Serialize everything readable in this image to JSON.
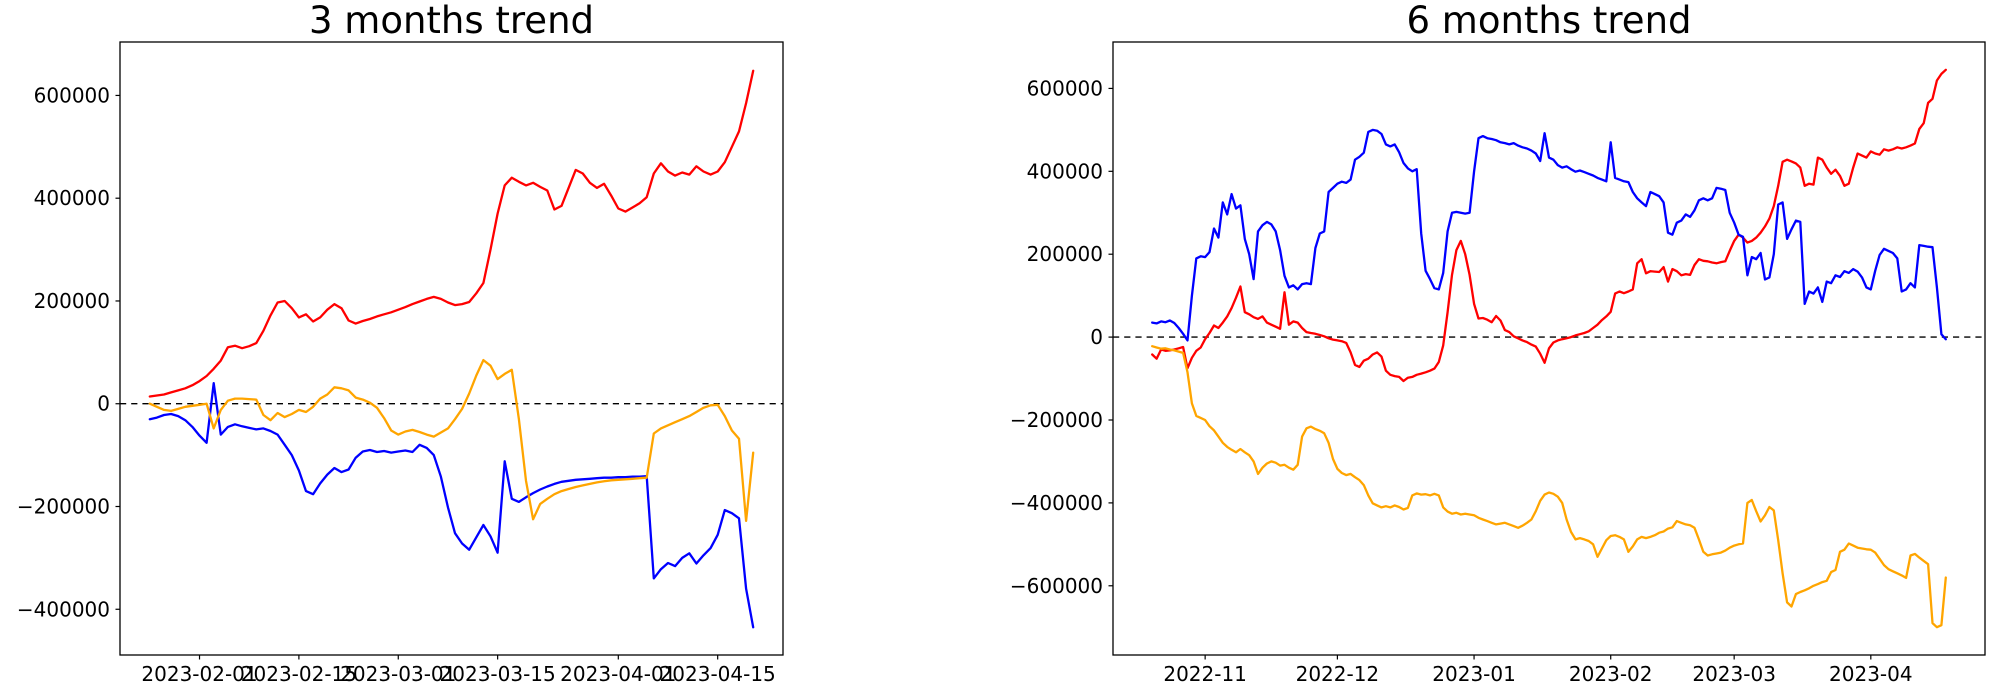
{
  "page": {
    "background": "#ffffff"
  },
  "chart_data": [
    {
      "type": "line",
      "title": "3 months trend",
      "x_start_date": "2023-01-25",
      "x_step": "1 day",
      "xlabel": "",
      "ylabel": "",
      "grid": false,
      "legend": null,
      "ylim": [
        -489000,
        704000
      ],
      "yticks": [
        600000,
        400000,
        200000,
        0,
        -200000,
        -400000
      ],
      "xticks": [
        {
          "day": 7,
          "label": "2023-02-01"
        },
        {
          "day": 21,
          "label": "2023-02-15"
        },
        {
          "day": 35,
          "label": "2023-03-01"
        },
        {
          "day": 49,
          "label": "2023-03-15"
        },
        {
          "day": 66,
          "label": "2023-04-01"
        },
        {
          "day": 80,
          "label": "2023-04-15"
        }
      ],
      "zero_line": {
        "style": "dashed",
        "color": "#000000"
      },
      "series": [
        {
          "name": "red-series",
          "color": "#ff0000",
          "values": [
            14000,
            16000,
            18000,
            22000,
            26000,
            30000,
            36000,
            44000,
            54000,
            68000,
            84000,
            110000,
            113000,
            108000,
            112000,
            118000,
            142000,
            172000,
            197000,
            200000,
            186000,
            168000,
            174000,
            160000,
            168000,
            183000,
            194000,
            186000,
            162000,
            156000,
            161000,
            165000,
            170000,
            174000,
            178000,
            183000,
            188000,
            194000,
            199000,
            204000,
            208000,
            204000,
            197000,
            192000,
            194000,
            198000,
            215000,
            235000,
            300000,
            370000,
            425000,
            440000,
            432000,
            425000,
            430000,
            422000,
            415000,
            378000,
            385000,
            420000,
            455000,
            448000,
            430000,
            420000,
            428000,
            405000,
            380000,
            374000,
            382000,
            390000,
            402000,
            448000,
            468000,
            452000,
            444000,
            450000,
            446000,
            462000,
            452000,
            446000,
            452000,
            470000,
            500000,
            530000,
            585000,
            648000
          ]
        },
        {
          "name": "blue-series",
          "color": "#0000ff",
          "values": [
            -30000,
            -27000,
            -22000,
            -20000,
            -24000,
            -32000,
            -45000,
            -62000,
            -76000,
            40000,
            -60000,
            -45000,
            -40000,
            -44000,
            -47000,
            -50000,
            -48000,
            -53000,
            -60000,
            -80000,
            -100000,
            -130000,
            -170000,
            -176000,
            -155000,
            -138000,
            -125000,
            -133000,
            -128000,
            -105000,
            -93000,
            -90000,
            -94000,
            -92000,
            -95000,
            -93000,
            -91000,
            -94000,
            -80000,
            -86000,
            -100000,
            -142000,
            -202000,
            -252000,
            -272000,
            -284000,
            -260000,
            -236000,
            -258000,
            -290000,
            -112000,
            -185000,
            -191000,
            -182000,
            -174000,
            -167000,
            -161000,
            -156000,
            -152000,
            -150000,
            -148000,
            -147000,
            -146000,
            -145000,
            -144000,
            -144000,
            -143000,
            -143000,
            -142000,
            -142000,
            -141000,
            -340000,
            -322000,
            -310000,
            -316000,
            -300000,
            -291000,
            -311000,
            -295000,
            -281000,
            -255000,
            -207000,
            -213000,
            -223000,
            -360000,
            -435000
          ]
        },
        {
          "name": "orange-series",
          "color": "#ffa500",
          "values": [
            0,
            -6000,
            -12000,
            -14000,
            -10000,
            -6000,
            -4000,
            -2000,
            0,
            -48000,
            -12000,
            6000,
            10000,
            10000,
            9000,
            8000,
            -22000,
            -32000,
            -18000,
            -26000,
            -20000,
            -12000,
            -16000,
            -6000,
            10000,
            18000,
            32000,
            30000,
            26000,
            12000,
            8000,
            2000,
            -8000,
            -28000,
            -52000,
            -60000,
            -54000,
            -51000,
            -55000,
            -60000,
            -64000,
            -56000,
            -48000,
            -30000,
            -10000,
            20000,
            55000,
            85000,
            74000,
            48000,
            58000,
            66000,
            -30000,
            -150000,
            -225000,
            -195000,
            -185000,
            -176000,
            -170000,
            -166000,
            -162000,
            -159000,
            -156000,
            -153000,
            -151000,
            -149000,
            -148000,
            -147000,
            -146000,
            -145000,
            -144000,
            -58000,
            -48000,
            -42000,
            -36000,
            -30000,
            -24000,
            -16000,
            -8000,
            -3000,
            -2000,
            -24000,
            -52000,
            -68000,
            -228000,
            -95000
          ]
        }
      ]
    },
    {
      "type": "line",
      "title": "6 months trend",
      "x_start_date": "2022-10-20",
      "x_step": "1 day",
      "xlabel": "",
      "ylabel": "",
      "grid": false,
      "legend": null,
      "ylim": [
        -767000,
        712000
      ],
      "yticks": [
        600000,
        400000,
        200000,
        0,
        -200000,
        -400000,
        -600000
      ],
      "xticks": [
        {
          "day": 12,
          "label": "2022-11"
        },
        {
          "day": 42,
          "label": "2022-12"
        },
        {
          "day": 73,
          "label": "2023-01"
        },
        {
          "day": 104,
          "label": "2023-02"
        },
        {
          "day": 132,
          "label": "2023-03"
        },
        {
          "day": 163,
          "label": "2023-04"
        }
      ],
      "zero_line": {
        "style": "dashed",
        "color": "#000000"
      },
      "series": [
        {
          "name": "red-series",
          "color": "#ff0000",
          "values": [
            -42000,
            -52000,
            -30000,
            -33000,
            -32000,
            -30000,
            -27000,
            -24000,
            -75000,
            -50000,
            -33000,
            -25000,
            -5000,
            10000,
            28000,
            22000,
            35000,
            50000,
            70000,
            95000,
            122000,
            60000,
            55000,
            48000,
            44000,
            50000,
            35000,
            30000,
            25000,
            20000,
            108000,
            30000,
            38000,
            35000,
            22000,
            12000,
            10000,
            8000,
            5000,
            2000,
            -3000,
            -6000,
            -8000,
            -10000,
            -14000,
            -37000,
            -67000,
            -72000,
            -57000,
            -52000,
            -42000,
            -37000,
            -47000,
            -81000,
            -91000,
            -94000,
            -96000,
            -106000,
            -98000,
            -96000,
            -91000,
            -88000,
            -85000,
            -81000,
            -76000,
            -60000,
            -20000,
            60000,
            150000,
            210000,
            232000,
            200000,
            150000,
            80000,
            45000,
            46000,
            42000,
            36000,
            51000,
            40000,
            17000,
            12000,
            2000,
            -3000,
            -8000,
            -12000,
            -18000,
            -23000,
            -40000,
            -62000,
            -27000,
            -13000,
            -8000,
            -5000,
            -3000,
            0,
            4000,
            7000,
            10000,
            14000,
            22000,
            30000,
            41000,
            50000,
            61000,
            105000,
            110000,
            106000,
            110000,
            115000,
            178000,
            188000,
            154000,
            159000,
            158000,
            157000,
            169000,
            134000,
            164000,
            159000,
            149000,
            152000,
            150000,
            174000,
            188000,
            184000,
            183000,
            180000,
            178000,
            181000,
            183000,
            208000,
            232000,
            247000,
            240000,
            228000,
            232000,
            240000,
            252000,
            267000,
            286000,
            316000,
            365000,
            423000,
            428000,
            424000,
            419000,
            409000,
            365000,
            370000,
            368000,
            433000,
            428000,
            409000,
            394000,
            404000,
            389000,
            365000,
            370000,
            409000,
            443000,
            438000,
            433000,
            448000,
            443000,
            440000,
            453000,
            450000,
            453000,
            458000,
            455000,
            458000,
            462000,
            467000,
            502000,
            516000,
            565000,
            575000,
            619000,
            635000,
            645000
          ]
        },
        {
          "name": "blue-series",
          "color": "#0000ff",
          "values": [
            35000,
            33000,
            38000,
            36000,
            40000,
            34000,
            22000,
            8000,
            -8000,
            100000,
            190000,
            195000,
            193000,
            205000,
            262000,
            240000,
            325000,
            296000,
            345000,
            310000,
            318000,
            237000,
            200000,
            140000,
            255000,
            270000,
            278000,
            272000,
            255000,
            210000,
            148000,
            120000,
            125000,
            115000,
            128000,
            130000,
            128000,
            215000,
            250000,
            255000,
            350000,
            360000,
            370000,
            375000,
            372000,
            380000,
            428000,
            435000,
            445000,
            495000,
            500000,
            498000,
            490000,
            465000,
            460000,
            465000,
            446000,
            420000,
            407000,
            400000,
            405000,
            250000,
            160000,
            140000,
            118000,
            115000,
            155000,
            255000,
            300000,
            302000,
            300000,
            298000,
            300000,
            400000,
            480000,
            485000,
            480000,
            478000,
            475000,
            470000,
            468000,
            465000,
            468000,
            462000,
            458000,
            455000,
            450000,
            443000,
            425000,
            492000,
            433000,
            428000,
            415000,
            409000,
            412000,
            405000,
            399000,
            402000,
            398000,
            394000,
            390000,
            384000,
            380000,
            376000,
            470000,
            384000,
            380000,
            376000,
            374000,
            350000,
            335000,
            325000,
            316000,
            350000,
            345000,
            340000,
            325000,
            252000,
            247000,
            276000,
            281000,
            296000,
            290000,
            306000,
            330000,
            335000,
            330000,
            335000,
            360000,
            358000,
            355000,
            300000,
            276000,
            247000,
            242000,
            149000,
            193000,
            188000,
            203000,
            139000,
            144000,
            200000,
            320000,
            325000,
            237000,
            260000,
            281000,
            278000,
            80000,
            110000,
            105000,
            120000,
            85000,
            134000,
            130000,
            149000,
            145000,
            159000,
            155000,
            164000,
            158000,
            144000,
            120000,
            115000,
            160000,
            198000,
            213000,
            208000,
            203000,
            190000,
            110000,
            115000,
            130000,
            120000,
            222000,
            220000,
            218000,
            217000,
            120000,
            7000,
            -5000
          ]
        },
        {
          "name": "orange-series",
          "color": "#ffa500",
          "values": [
            -22000,
            -25000,
            -28000,
            -27000,
            -30000,
            -32000,
            -35000,
            -38000,
            -85000,
            -160000,
            -190000,
            -195000,
            -200000,
            -215000,
            -225000,
            -240000,
            -255000,
            -265000,
            -272000,
            -278000,
            -270000,
            -278000,
            -285000,
            -300000,
            -330000,
            -315000,
            -305000,
            -300000,
            -303000,
            -310000,
            -308000,
            -315000,
            -320000,
            -308000,
            -240000,
            -220000,
            -216000,
            -222000,
            -226000,
            -232000,
            -255000,
            -294000,
            -318000,
            -328000,
            -333000,
            -330000,
            -338000,
            -345000,
            -357000,
            -382000,
            -401000,
            -406000,
            -411000,
            -408000,
            -411000,
            -406000,
            -410000,
            -416000,
            -412000,
            -382000,
            -377000,
            -380000,
            -379000,
            -382000,
            -378000,
            -382000,
            -411000,
            -421000,
            -426000,
            -424000,
            -428000,
            -426000,
            -428000,
            -430000,
            -436000,
            -440000,
            -444000,
            -448000,
            -452000,
            -450000,
            -448000,
            -452000,
            -456000,
            -460000,
            -455000,
            -448000,
            -440000,
            -420000,
            -395000,
            -380000,
            -375000,
            -378000,
            -385000,
            -400000,
            -440000,
            -470000,
            -488000,
            -485000,
            -488000,
            -492000,
            -500000,
            -530000,
            -510000,
            -490000,
            -480000,
            -478000,
            -482000,
            -488000,
            -518000,
            -505000,
            -488000,
            -482000,
            -485000,
            -482000,
            -478000,
            -472000,
            -469000,
            -462000,
            -459000,
            -444000,
            -448000,
            -452000,
            -454000,
            -460000,
            -488000,
            -518000,
            -527000,
            -524000,
            -522000,
            -520000,
            -515000,
            -508000,
            -503000,
            -500000,
            -498000,
            -400000,
            -393000,
            -420000,
            -445000,
            -430000,
            -410000,
            -418000,
            -490000,
            -570000,
            -640000,
            -650000,
            -620000,
            -615000,
            -611000,
            -606000,
            -600000,
            -596000,
            -591000,
            -588000,
            -567000,
            -562000,
            -518000,
            -513000,
            -498000,
            -503000,
            -508000,
            -510000,
            -512000,
            -513000,
            -520000,
            -535000,
            -550000,
            -560000,
            -565000,
            -570000,
            -575000,
            -581000,
            -527000,
            -523000,
            -532000,
            -540000,
            -548000,
            -690000,
            -700000,
            -695000,
            -580000
          ]
        }
      ]
    }
  ]
}
